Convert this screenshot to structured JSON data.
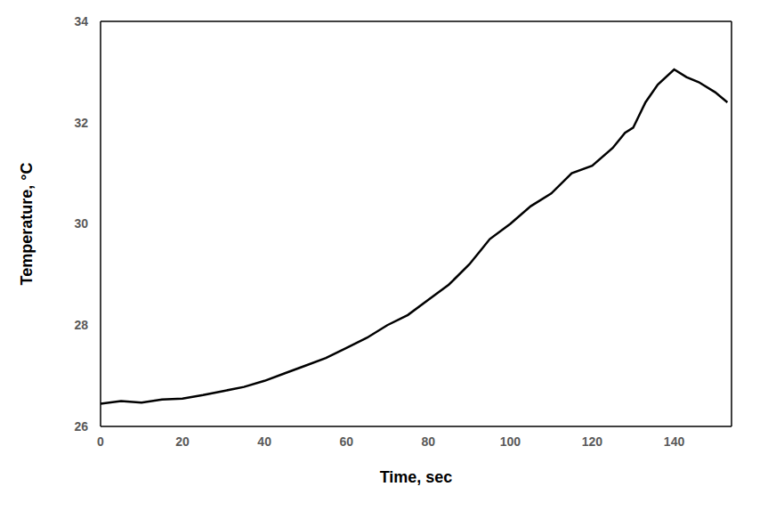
{
  "chart_data": {
    "type": "line",
    "x_label": "Time, sec",
    "y_label": "Temperature, °C",
    "x": [
      0,
      5,
      10,
      15,
      20,
      25,
      30,
      35,
      40,
      45,
      50,
      55,
      60,
      65,
      70,
      75,
      80,
      85,
      90,
      93,
      95,
      100,
      105,
      110,
      115,
      120,
      125,
      128,
      130,
      133,
      136,
      140,
      143,
      146,
      150,
      153
    ],
    "series": [
      {
        "name": "Temperature",
        "color": "#000000",
        "values": [
          26.45,
          26.5,
          26.47,
          26.53,
          26.55,
          26.62,
          26.7,
          26.78,
          26.9,
          27.05,
          27.2,
          27.35,
          27.55,
          27.75,
          28.0,
          28.2,
          28.5,
          28.8,
          29.2,
          29.5,
          29.7,
          30.0,
          30.35,
          30.6,
          31.0,
          31.15,
          31.5,
          31.8,
          31.9,
          32.4,
          32.75,
          33.05,
          32.9,
          32.8,
          32.6,
          32.4
        ]
      }
    ],
    "xlim": [
      0,
      154
    ],
    "xticks": [
      0,
      20,
      40,
      60,
      80,
      100,
      120,
      140
    ],
    "ylim": [
      26,
      34
    ],
    "yticks": [
      26,
      28,
      30,
      32,
      34
    ],
    "grid": false
  }
}
